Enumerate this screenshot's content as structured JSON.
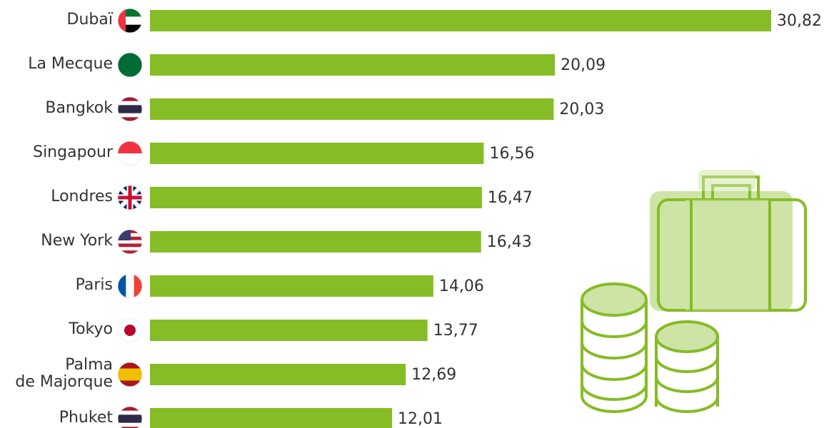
{
  "chart_data": {
    "type": "bar",
    "orientation": "horizontal",
    "categories": [
      "Dubaï",
      "La Mecque",
      "Bangkok",
      "Singapour",
      "Londres",
      "New York",
      "Paris",
      "Tokyo",
      "Palma\nde Majorque",
      "Phuket"
    ],
    "values": [
      30.82,
      20.09,
      20.03,
      16.56,
      16.47,
      16.43,
      14.06,
      13.77,
      12.69,
      12.01
    ],
    "value_labels": [
      "30,82",
      "20,09",
      "20,03",
      "16,56",
      "16,47",
      "16,43",
      "14,06",
      "13,77",
      "12,69",
      "12,01"
    ],
    "color": "#86bc25"
  }
}
